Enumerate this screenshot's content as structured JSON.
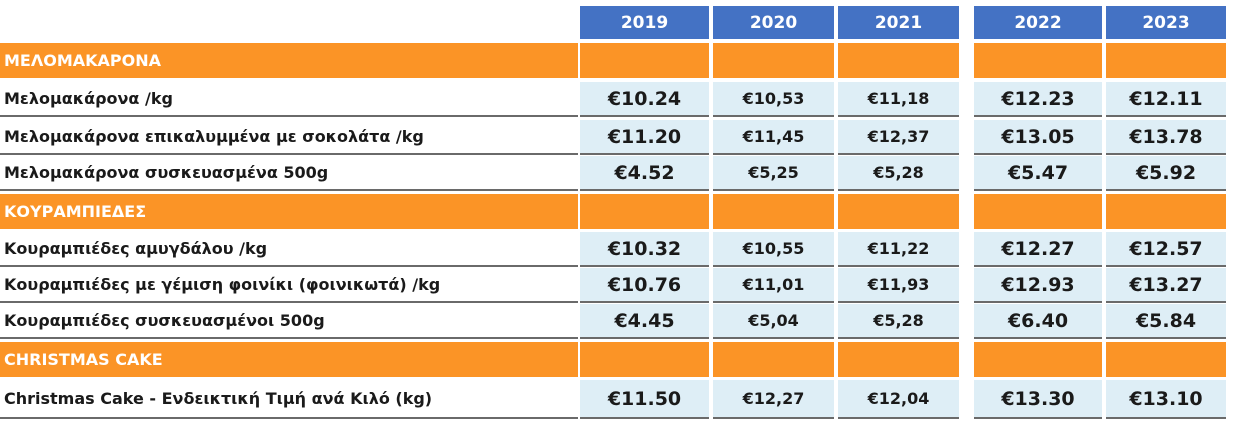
{
  "years": [
    "2019",
    "2020",
    "2021",
    "2022",
    "2023"
  ],
  "sections": [
    {
      "title": "ΜΕΛΟΜΑΚΑΡΟΝΑ",
      "items": [
        {
          "label": "Μελομακάρονα /kg",
          "values": [
            "€10.24",
            "€10,53",
            "€11,18",
            "€12.23",
            "€12.11"
          ]
        },
        {
          "label": "Μελομακάρονα επικαλυμμένα με σοκολάτα /kg",
          "values": [
            "€11.20",
            "€11,45",
            "€12,37",
            "€13.05",
            "€13.78"
          ]
        },
        {
          "label": "Μελομακάρονα συσκευασμένα 500g",
          "values": [
            "€4.52",
            "€5,25",
            "€5,28",
            "€5.47",
            "€5.92"
          ]
        }
      ]
    },
    {
      "title": "ΚΟΥΡΑΜΠΙΕΔΕΣ",
      "items": [
        {
          "label": "Κουραμπιέδες αμυγδάλου /kg",
          "values": [
            "€10.32",
            "€10,55",
            "€11,22",
            "€12.27",
            "€12.57"
          ]
        },
        {
          "label": "Κουραμπιέδες με γέμιση φοινίκι (φοινικωτά) /kg",
          "values": [
            "€10.76",
            "€11,01",
            "€11,93",
            "€12.93",
            "€13.27"
          ]
        },
        {
          "label": "Κουραμπιέδες συσκευασμένοι 500g",
          "values": [
            "€4.45",
            "€5,04",
            "€5,28",
            "€6.40",
            "€5.84"
          ]
        }
      ]
    },
    {
      "title": "CHRISTMAS CAKE",
      "items": [
        {
          "label": "Christmas Cake - Ενδεικτική Τιμή ανά Κιλό (kg)",
          "values": [
            "€11.50",
            "€12,27",
            "€12,04",
            "€13.30",
            "€13.10"
          ]
        }
      ]
    }
  ],
  "colors": {
    "header": "#4472c4",
    "section": "#fb9426",
    "value_cell": "#deeef6"
  }
}
